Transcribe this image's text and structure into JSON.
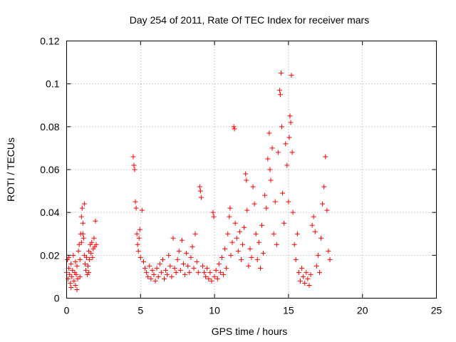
{
  "chart_data": {
    "type": "scatter",
    "title": "Day 254 of 2011, Rate Of TEC Index for receiver mars",
    "xlabel": "GPS time / hours",
    "ylabel": "ROTI / TECUs",
    "xlim": [
      0,
      25
    ],
    "ylim": [
      0,
      0.12
    ],
    "xticks": [
      0,
      5,
      10,
      15,
      20,
      25
    ],
    "xtick_labels": [
      "0",
      "5",
      "10",
      "15",
      "20",
      "25"
    ],
    "yticks": [
      0,
      0.02,
      0.04,
      0.06,
      0.08,
      0.1,
      0.12
    ],
    "ytick_labels": [
      "0",
      "0.02",
      "0.04",
      "0.06",
      "0.08",
      "0.1",
      "0.12"
    ],
    "grid": true,
    "marker": "plus",
    "color": "#ff0000",
    "series": [
      {
        "name": "ROTI",
        "points": [
          [
            0.0,
            0.012
          ],
          [
            0.05,
            0.018
          ],
          [
            0.1,
            0.009
          ],
          [
            0.15,
            0.014
          ],
          [
            0.2,
            0.011
          ],
          [
            0.25,
            0.007
          ],
          [
            0.3,
            0.016
          ],
          [
            0.35,
            0.01
          ],
          [
            0.4,
            0.013
          ],
          [
            0.45,
            0.02
          ],
          [
            0.5,
            0.008
          ],
          [
            0.55,
            0.012
          ],
          [
            0.6,
            0.017
          ],
          [
            0.65,
            0.011
          ],
          [
            0.7,
            0.015
          ],
          [
            0.75,
            0.009
          ],
          [
            0.8,
            0.022
          ],
          [
            0.85,
            0.025
          ],
          [
            0.9,
            0.018
          ],
          [
            0.95,
            0.03
          ],
          [
            1.0,
            0.038
          ],
          [
            1.05,
            0.042
          ],
          [
            1.1,
            0.035
          ],
          [
            1.15,
            0.028
          ],
          [
            1.2,
            0.02
          ],
          [
            1.25,
            0.016
          ],
          [
            1.3,
            0.013
          ],
          [
            1.35,
            0.019
          ],
          [
            1.4,
            0.011
          ],
          [
            1.45,
            0.015
          ],
          [
            1.5,
            0.022
          ],
          [
            1.55,
            0.018
          ],
          [
            1.6,
            0.025
          ],
          [
            1.65,
            0.021
          ],
          [
            1.7,
            0.026
          ],
          [
            1.75,
            0.019
          ],
          [
            1.8,
            0.023
          ],
          [
            1.85,
            0.028
          ],
          [
            1.9,
            0.024
          ],
          [
            1.95,
            0.036
          ],
          [
            2.0,
            0.025
          ],
          [
            0.3,
            0.005
          ],
          [
            0.6,
            0.006
          ],
          [
            0.9,
            0.01
          ],
          [
            1.1,
            0.03
          ],
          [
            1.2,
            0.044
          ],
          [
            0.15,
            0.019
          ],
          [
            0.7,
            0.004
          ],
          [
            1.5,
            0.012
          ],
          [
            1.0,
            0.026
          ],
          [
            4.5,
            0.066
          ],
          [
            4.55,
            0.062
          ],
          [
            4.6,
            0.06
          ],
          [
            4.65,
            0.045
          ],
          [
            4.7,
            0.042
          ],
          [
            4.75,
            0.03
          ],
          [
            4.8,
            0.025
          ],
          [
            4.85,
            0.022
          ],
          [
            4.9,
            0.028
          ],
          [
            4.95,
            0.032
          ],
          [
            5.0,
            0.019
          ],
          [
            5.1,
            0.041
          ],
          [
            5.2,
            0.017
          ],
          [
            5.3,
            0.014
          ],
          [
            5.4,
            0.012
          ],
          [
            5.5,
            0.01
          ],
          [
            5.6,
            0.015
          ],
          [
            5.7,
            0.009
          ],
          [
            5.8,
            0.013
          ],
          [
            5.9,
            0.011
          ],
          [
            6.0,
            0.008
          ],
          [
            6.1,
            0.014
          ],
          [
            6.2,
            0.01
          ],
          [
            6.3,
            0.016
          ],
          [
            6.4,
            0.012
          ],
          [
            6.5,
            0.018
          ],
          [
            6.6,
            0.009
          ],
          [
            6.7,
            0.013
          ],
          [
            6.8,
            0.011
          ],
          [
            6.9,
            0.02
          ],
          [
            7.0,
            0.015
          ],
          [
            7.1,
            0.01
          ],
          [
            7.2,
            0.028
          ],
          [
            7.3,
            0.014
          ],
          [
            7.4,
            0.012
          ],
          [
            7.5,
            0.018
          ],
          [
            7.6,
            0.022
          ],
          [
            7.7,
            0.013
          ],
          [
            7.8,
            0.027
          ],
          [
            7.9,
            0.016
          ],
          [
            8.0,
            0.011
          ],
          [
            8.1,
            0.021
          ],
          [
            8.2,
            0.015
          ],
          [
            8.3,
            0.012
          ],
          [
            8.4,
            0.019
          ],
          [
            8.5,
            0.024
          ],
          [
            8.6,
            0.014
          ],
          [
            8.7,
            0.03
          ],
          [
            8.8,
            0.017
          ],
          [
            8.9,
            0.012
          ],
          [
            9.0,
            0.052
          ],
          [
            9.05,
            0.05
          ],
          [
            9.1,
            0.047
          ],
          [
            9.2,
            0.015
          ],
          [
            9.3,
            0.012
          ],
          [
            9.4,
            0.01
          ],
          [
            9.5,
            0.014
          ],
          [
            9.6,
            0.009
          ],
          [
            9.7,
            0.012
          ],
          [
            9.8,
            0.008
          ],
          [
            9.9,
            0.04
          ],
          [
            9.95,
            0.038
          ],
          [
            10.0,
            0.01
          ],
          [
            10.1,
            0.013
          ],
          [
            10.2,
            0.009
          ],
          [
            10.3,
            0.016
          ],
          [
            10.4,
            0.012
          ],
          [
            10.5,
            0.019
          ],
          [
            10.6,
            0.011
          ],
          [
            10.7,
            0.023
          ],
          [
            10.8,
            0.014
          ],
          [
            10.9,
            0.03
          ],
          [
            11.0,
            0.038
          ],
          [
            11.05,
            0.042
          ],
          [
            11.1,
            0.02
          ],
          [
            11.2,
            0.026
          ],
          [
            11.3,
            0.08
          ],
          [
            11.35,
            0.079
          ],
          [
            11.4,
            0.035
          ],
          [
            11.5,
            0.028
          ],
          [
            11.6,
            0.022
          ],
          [
            11.7,
            0.031
          ],
          [
            11.8,
            0.018
          ],
          [
            11.9,
            0.025
          ],
          [
            12.0,
            0.033
          ],
          [
            12.1,
            0.058
          ],
          [
            12.15,
            0.055
          ],
          [
            12.2,
            0.041
          ],
          [
            12.3,
            0.015
          ],
          [
            12.4,
            0.023
          ],
          [
            12.5,
            0.019
          ],
          [
            12.6,
            0.052
          ],
          [
            12.7,
            0.044
          ],
          [
            12.8,
            0.03
          ],
          [
            12.9,
            0.018
          ],
          [
            13.0,
            0.026
          ],
          [
            13.1,
            0.014
          ],
          [
            13.2,
            0.034
          ],
          [
            13.3,
            0.021
          ],
          [
            13.4,
            0.048
          ],
          [
            13.5,
            0.042
          ],
          [
            13.6,
            0.065
          ],
          [
            13.7,
            0.077
          ],
          [
            13.75,
            0.06
          ],
          [
            13.8,
            0.055
          ],
          [
            13.9,
            0.07
          ],
          [
            14.0,
            0.03
          ],
          [
            14.1,
            0.045
          ],
          [
            14.2,
            0.025
          ],
          [
            14.3,
            0.068
          ],
          [
            14.4,
            0.097
          ],
          [
            14.45,
            0.095
          ],
          [
            14.5,
            0.105
          ],
          [
            14.55,
            0.08
          ],
          [
            14.6,
            0.049
          ],
          [
            14.7,
            0.035
          ],
          [
            14.8,
            0.072
          ],
          [
            14.9,
            0.062
          ],
          [
            15.0,
            0.045
          ],
          [
            15.05,
            0.075
          ],
          [
            15.1,
            0.085
          ],
          [
            15.15,
            0.082
          ],
          [
            15.2,
            0.104
          ],
          [
            15.25,
            0.068
          ],
          [
            15.3,
            0.04
          ],
          [
            15.4,
            0.025
          ],
          [
            15.5,
            0.018
          ],
          [
            15.6,
            0.03
          ],
          [
            15.7,
            0.012
          ],
          [
            15.8,
            0.008
          ],
          [
            15.9,
            0.014
          ],
          [
            16.0,
            0.01
          ],
          [
            16.1,
            0.007
          ],
          [
            16.2,
            0.012
          ],
          [
            16.3,
            0.009
          ],
          [
            16.4,
            0.006
          ],
          [
            16.5,
            0.011
          ],
          [
            16.6,
            0.034
          ],
          [
            16.7,
            0.038
          ],
          [
            16.8,
            0.031
          ],
          [
            16.9,
            0.015
          ],
          [
            17.0,
            0.02
          ],
          [
            17.1,
            0.012
          ],
          [
            17.2,
            0.028
          ],
          [
            17.3,
            0.044
          ],
          [
            17.4,
            0.052
          ],
          [
            17.5,
            0.066
          ],
          [
            17.6,
            0.041
          ],
          [
            17.7,
            0.022
          ],
          [
            17.8,
            0.018
          ]
        ]
      }
    ]
  }
}
